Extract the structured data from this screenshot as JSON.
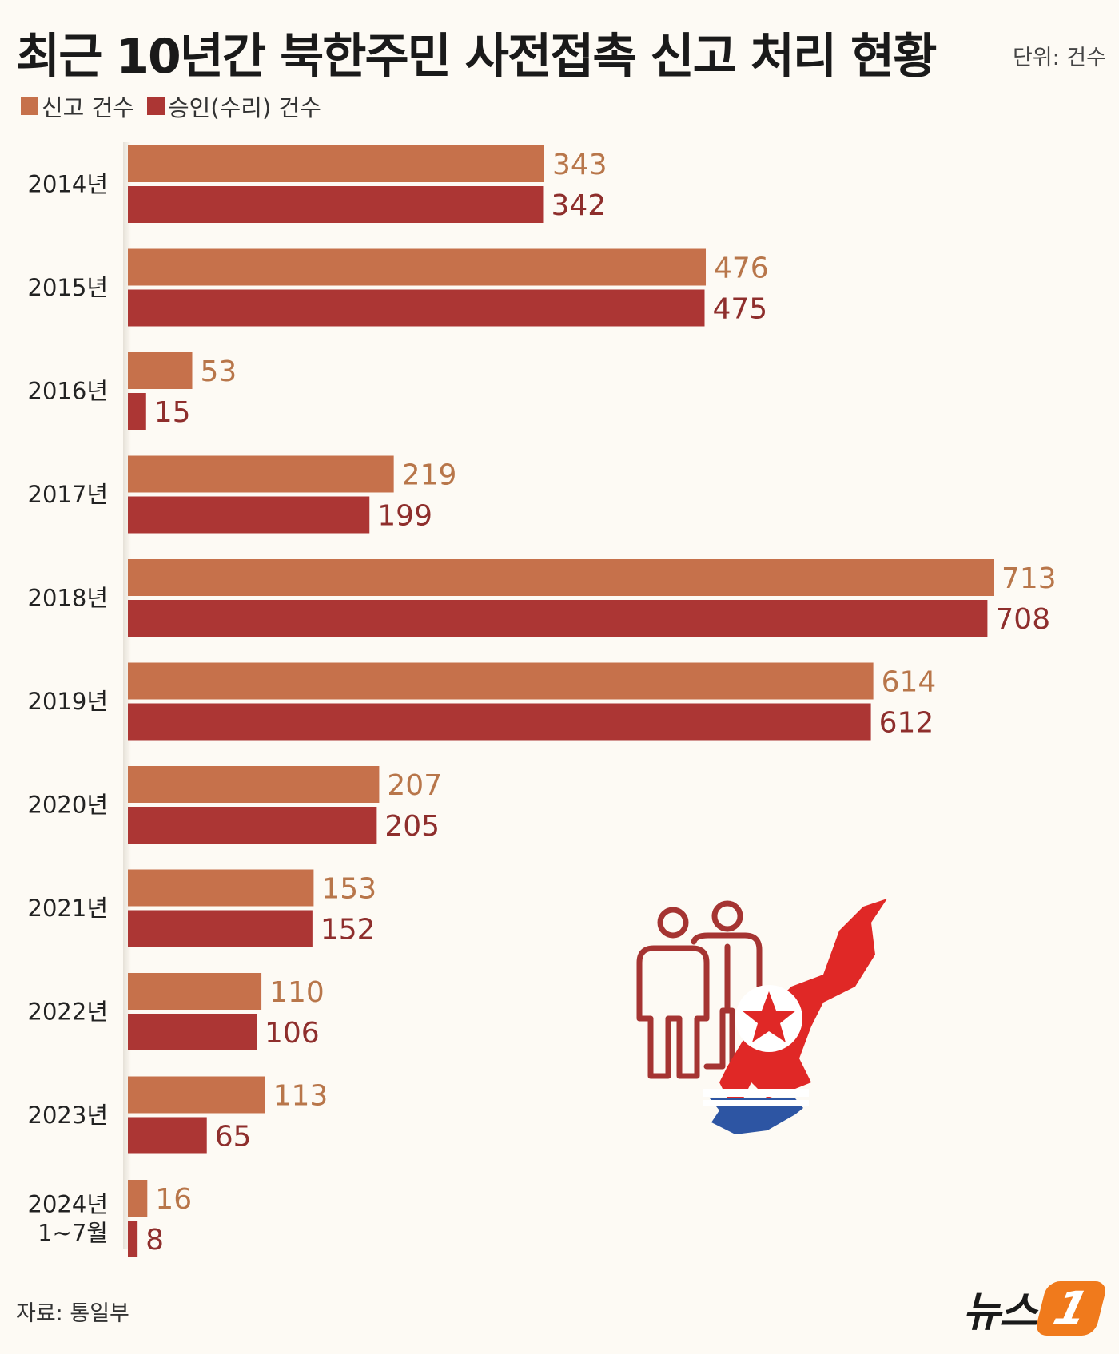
{
  "title": "최근 10년간 북한주민 사전접촉 신고 처리 현황",
  "unit": "단위: 건수",
  "source": "자료: 통일부",
  "logo": {
    "text": "뉴스",
    "mark": "1"
  },
  "colors": {
    "reports": "#c6714b",
    "approvals": "#ac3634",
    "background": "#fdfaf4"
  },
  "chart_data": {
    "type": "bar",
    "orientation": "horizontal",
    "title": "최근 10년간 북한주민 사전접촉 신고 처리 현황",
    "xlabel": "",
    "ylabel": "",
    "xlim": [
      0,
      713
    ],
    "grid": false,
    "legend_position": "top-left",
    "categories": [
      "2014년",
      "2015년",
      "2016년",
      "2017년",
      "2018년",
      "2019년",
      "2020년",
      "2021년",
      "2022년",
      "2023년",
      "2024년\n1~7월"
    ],
    "series": [
      {
        "name": "신고 건수",
        "color": "#c6714b",
        "label_color": "#b8764a",
        "values": [
          343,
          476,
          53,
          219,
          713,
          614,
          207,
          153,
          110,
          113,
          16
        ]
      },
      {
        "name": "승인(수리) 건수",
        "color": "#ac3634",
        "label_color": "#8e2e2c",
        "values": [
          342,
          475,
          15,
          199,
          708,
          612,
          205,
          152,
          106,
          65,
          8
        ]
      }
    ]
  }
}
